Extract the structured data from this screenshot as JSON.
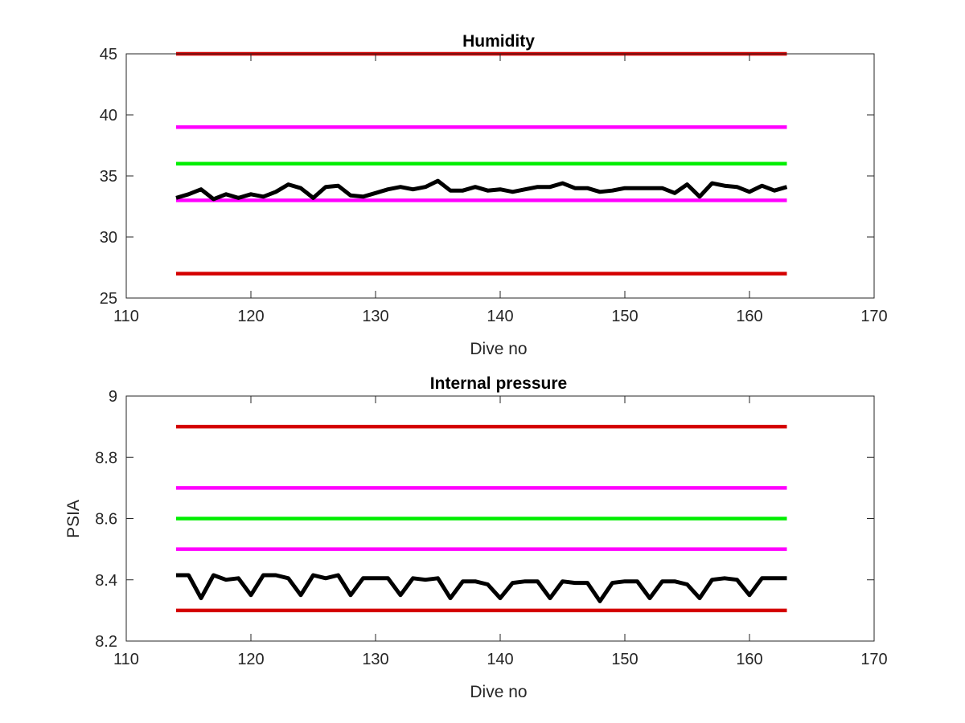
{
  "chart_data": [
    {
      "type": "line",
      "title": "Humidity",
      "xlabel": "Dive no",
      "ylabel": "",
      "xlim": [
        110,
        170
      ],
      "ylim": [
        25,
        45
      ],
      "xticks": [
        110,
        120,
        130,
        140,
        150,
        160,
        170
      ],
      "yticks": [
        25,
        30,
        35,
        40,
        45
      ],
      "grid": false,
      "legend": "none",
      "series": [
        {
          "color": "#d40000",
          "kind": "threshold",
          "x": [
            114,
            163
          ],
          "y": [
            45,
            45
          ]
        },
        {
          "color": "#ff00ff",
          "kind": "threshold",
          "x": [
            114,
            163
          ],
          "y": [
            39,
            39
          ]
        },
        {
          "color": "#00ee00",
          "kind": "threshold",
          "x": [
            114,
            163
          ],
          "y": [
            36,
            36
          ]
        },
        {
          "color": "#ff00ff",
          "kind": "threshold",
          "x": [
            114,
            163
          ],
          "y": [
            33,
            33
          ]
        },
        {
          "color": "#d40000",
          "kind": "threshold",
          "x": [
            114,
            163
          ],
          "y": [
            27,
            27
          ]
        },
        {
          "color": "#000000",
          "kind": "measurement",
          "x": [
            114,
            115,
            116,
            117,
            118,
            119,
            120,
            121,
            122,
            123,
            124,
            125,
            126,
            127,
            128,
            129,
            130,
            131,
            132,
            133,
            134,
            135,
            136,
            137,
            138,
            139,
            140,
            141,
            142,
            143,
            144,
            145,
            146,
            147,
            148,
            149,
            150,
            151,
            152,
            153,
            154,
            155,
            156,
            157,
            158,
            159,
            160,
            161,
            162,
            163
          ],
          "y": [
            33.2,
            33.5,
            33.9,
            33.1,
            33.5,
            33.2,
            33.5,
            33.3,
            33.7,
            34.3,
            34.0,
            33.2,
            34.1,
            34.2,
            33.4,
            33.3,
            33.6,
            33.9,
            34.1,
            33.9,
            34.1,
            34.6,
            33.8,
            33.8,
            34.1,
            33.8,
            33.9,
            33.7,
            33.9,
            34.1,
            34.1,
            34.4,
            34.0,
            34.0,
            33.7,
            33.8,
            34.0,
            34.0,
            34.0,
            34.0,
            33.6,
            34.3,
            33.3,
            34.4,
            34.2,
            34.1,
            33.7,
            34.2,
            33.8,
            34.1
          ]
        }
      ]
    },
    {
      "type": "line",
      "title": "Internal pressure",
      "xlabel": "Dive no",
      "ylabel": "PSIA",
      "xlim": [
        110,
        170
      ],
      "ylim": [
        8.2,
        9
      ],
      "xticks": [
        110,
        120,
        130,
        140,
        150,
        160,
        170
      ],
      "yticks": [
        8.2,
        8.4,
        8.6,
        8.8,
        9
      ],
      "grid": false,
      "legend": "none",
      "series": [
        {
          "color": "#d40000",
          "kind": "threshold",
          "x": [
            114,
            163
          ],
          "y": [
            8.9,
            8.9
          ]
        },
        {
          "color": "#ff00ff",
          "kind": "threshold",
          "x": [
            114,
            163
          ],
          "y": [
            8.7,
            8.7
          ]
        },
        {
          "color": "#00ee00",
          "kind": "threshold",
          "x": [
            114,
            163
          ],
          "y": [
            8.6,
            8.6
          ]
        },
        {
          "color": "#ff00ff",
          "kind": "threshold",
          "x": [
            114,
            163
          ],
          "y": [
            8.5,
            8.5
          ]
        },
        {
          "color": "#d40000",
          "kind": "threshold",
          "x": [
            114,
            163
          ],
          "y": [
            8.3,
            8.3
          ]
        },
        {
          "color": "#000000",
          "kind": "measurement",
          "x": [
            114,
            115,
            116,
            117,
            118,
            119,
            120,
            121,
            122,
            123,
            124,
            125,
            126,
            127,
            128,
            129,
            130,
            131,
            132,
            133,
            134,
            135,
            136,
            137,
            138,
            139,
            140,
            141,
            142,
            143,
            144,
            145,
            146,
            147,
            148,
            149,
            150,
            151,
            152,
            153,
            154,
            155,
            156,
            157,
            158,
            159,
            160,
            161,
            162,
            163
          ],
          "y": [
            8.415,
            8.415,
            8.34,
            8.415,
            8.4,
            8.405,
            8.35,
            8.415,
            8.415,
            8.405,
            8.35,
            8.415,
            8.405,
            8.415,
            8.35,
            8.405,
            8.405,
            8.405,
            8.35,
            8.405,
            8.4,
            8.405,
            8.34,
            8.395,
            8.395,
            8.385,
            8.34,
            8.39,
            8.395,
            8.395,
            8.34,
            8.395,
            8.39,
            8.39,
            8.33,
            8.39,
            8.395,
            8.395,
            8.34,
            8.395,
            8.395,
            8.385,
            8.34,
            8.4,
            8.405,
            8.4,
            8.35,
            8.405,
            8.405,
            8.405
          ]
        }
      ]
    }
  ]
}
